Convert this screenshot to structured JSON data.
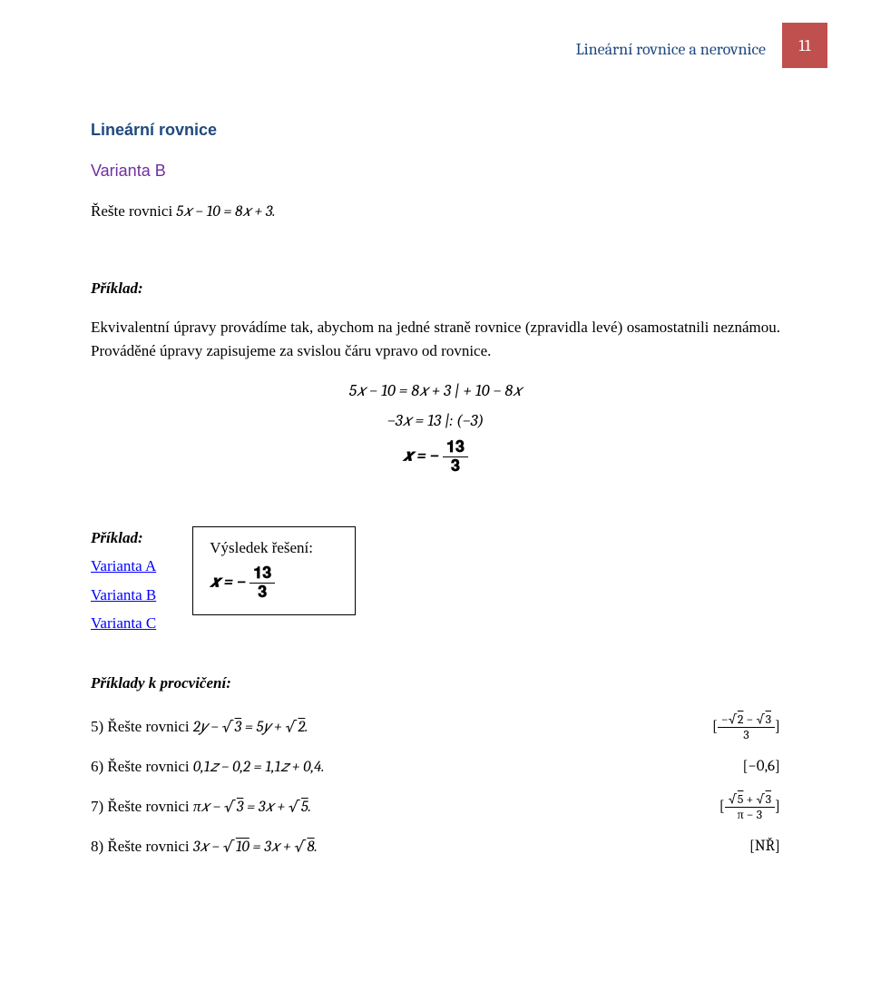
{
  "header": {
    "title": "Lineární rovnice a nerovnice",
    "page": "11",
    "title_color": "#1f497d",
    "badge_bg": "#c0504d",
    "badge_fg": "#ffffff"
  },
  "section_heading": "Lineární rovnice",
  "variant_heading": "Varianta B",
  "intro_prefix": "Řešte rovnici ",
  "intro_math": "5𝑥 − 10 = 8𝑥 + 3.",
  "example_label": "Příklad:",
  "explanation": "Ekvivalentní úpravy provádíme tak, abychom na jedné straně rovnice (zpravidla levé) osamostatnili neznámou. Prováděné úpravy zapisujeme za svislou čáru vpravo od rovnice.",
  "work": {
    "line1": "5𝑥 − 10 = 8𝑥 + 3 | + 10 − 8𝑥",
    "line2": "−3𝑥 = 13 |: (−3)",
    "line3_prefix": "𝒙 = − ",
    "line3_num": "𝟏𝟑",
    "line3_den": "𝟑"
  },
  "result_box": {
    "label": "Výsledek řešení:",
    "expr_prefix": "𝒙 = − ",
    "num": "𝟏𝟑",
    "den": "𝟑"
  },
  "nav": {
    "example_label": "Příklad:",
    "variant_a": "Varianta A",
    "variant_b": "Varianta B",
    "variant_c": "Varianta C"
  },
  "exercises_heading": "Příklady k procvičení:",
  "exercises": [
    {
      "n": "5)",
      "text_prefix": "Řešte rovnici ",
      "math": "2𝑦 − √3 = 5𝑦 + √2.",
      "ans_type": "frac",
      "ans_num": "−√2 − √3",
      "ans_den": "3"
    },
    {
      "n": "6)",
      "text_prefix": "Řešte rovnici ",
      "math": "0,1𝑧 − 0,2 = 1,1𝑧 + 0,4.",
      "ans_type": "plain",
      "ans": "[−0,6]"
    },
    {
      "n": "7)",
      "text_prefix": "Řešte rovnici ",
      "math": "π𝑥 − √3 = 3𝑥 + √5.",
      "ans_type": "frac",
      "ans_num": "√5 + √3",
      "ans_den": "π − 3"
    },
    {
      "n": "8)",
      "text_prefix": "Řešte rovnici ",
      "math": "3𝑥 − √10 = 3𝑥 + √8.",
      "ans_type": "plain",
      "ans": "[NŘ]"
    }
  ],
  "colors": {
    "section": "#1f497d",
    "variant": "#7030a0",
    "link": "#0000ff",
    "text": "#000000",
    "bg": "#ffffff"
  }
}
